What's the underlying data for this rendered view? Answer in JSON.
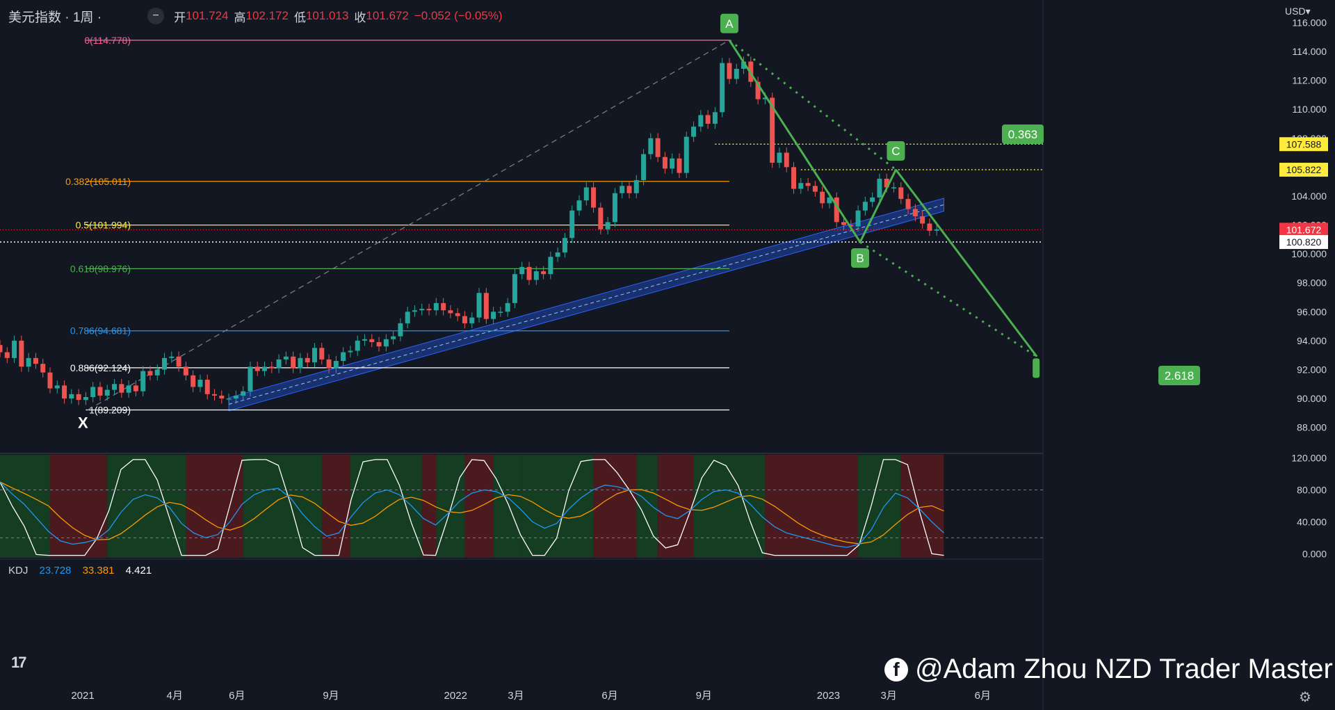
{
  "header": {
    "symbol": "美元指数 · 1周 ·",
    "open_label": "开",
    "open": "101.724",
    "high_label": "高",
    "high": "102.172",
    "low_label": "低",
    "low": "101.013",
    "close_label": "收",
    "close": "101.672",
    "change": "−0.052 (−0.05%)"
  },
  "currency": "USD",
  "kdj": {
    "name": "KDJ",
    "k": "23.728",
    "d": "33.381",
    "j": "4.421"
  },
  "watermark": "@Adam Zhou NZD Trader Master",
  "colors": {
    "bg": "#131722",
    "up": "#26a69a",
    "down": "#ef5350",
    "pattern": "#4caf50",
    "channel": "#2962ff"
  },
  "chart_data": {
    "type": "candlestick",
    "y_ticks": [
      "116.000",
      "114.000",
      "112.000",
      "110.000",
      "108.000",
      "106.000",
      "104.000",
      "102.000",
      "100.000",
      "98.000",
      "96.000",
      "94.000",
      "92.000",
      "90.000",
      "88.000"
    ],
    "ylim": [
      86.3,
      116.5
    ],
    "x_ticks": [
      "2021",
      "4月",
      "6月",
      "9月",
      "2022",
      "3月",
      "6月",
      "9月",
      "2023",
      "3月",
      "6月"
    ],
    "x_tick_dates": [
      "2021-01-01",
      "2021-04-01",
      "2021-06-01",
      "2021-09-01",
      "2022-01-01",
      "2022-03-01",
      "2022-06-01",
      "2022-09-01",
      "2023-01-01",
      "2023-03-01",
      "2023-06-01"
    ],
    "xlim": [
      "2020-10-12",
      "2023-07-30"
    ],
    "fib_levels": [
      {
        "label": "0(114.778)",
        "value": 114.778,
        "color": "#f06292"
      },
      {
        "label": "0.382(105.011)",
        "value": 105.011,
        "color": "#ff9800"
      },
      {
        "label": "0.5(101.994)",
        "value": 101.994,
        "color": "#ffeb3b"
      },
      {
        "label": "0.618(98.976)",
        "value": 98.976,
        "color": "#4caf50"
      },
      {
        "label": "0.786(94.681)",
        "value": 94.681,
        "color": "#2196f3"
      },
      {
        "label": "0.886(92.124)",
        "value": 92.124,
        "color": "#ffffff"
      },
      {
        "label": "1(89.209)",
        "value": 89.209,
        "color": "#ffffff"
      }
    ],
    "price_tags": [
      {
        "label": "107.588",
        "value": 107.588,
        "color": "#ffeb3b"
      },
      {
        "label": "105.822",
        "value": 105.822,
        "color": "#ffeb3b"
      },
      {
        "label": "101.672",
        "value": 101.672,
        "color": "#f23645"
      },
      {
        "label": "100.820",
        "value": 100.82,
        "color": "#ffffff"
      }
    ],
    "pattern_points": [
      {
        "label": "X",
        "date": "2021-01-06",
        "value": 89.209
      },
      {
        "label": "A",
        "date": "2022-09-26",
        "value": 114.778
      },
      {
        "label": "B",
        "date": "2023-02-01",
        "value": 100.82
      },
      {
        "label": "C",
        "date": "2023-03-08",
        "value": 105.822
      }
    ],
    "ratios": [
      {
        "label": "0.363"
      },
      {
        "label": "2.618"
      }
    ],
    "candles": [
      {
        "date": "2020-10-12",
        "o": 93.7,
        "c": 93.2
      },
      {
        "date": "2020-10-19",
        "o": 93.2,
        "c": 92.8
      },
      {
        "date": "2020-10-26",
        "o": 92.8,
        "c": 94.0
      },
      {
        "date": "2020-11-02",
        "o": 94.0,
        "c": 92.2
      },
      {
        "date": "2020-11-09",
        "o": 92.2,
        "c": 92.8
      },
      {
        "date": "2020-11-16",
        "o": 92.8,
        "c": 92.4
      },
      {
        "date": "2020-11-23",
        "o": 92.4,
        "c": 91.8
      },
      {
        "date": "2020-11-30",
        "o": 91.8,
        "c": 90.7
      },
      {
        "date": "2020-12-07",
        "o": 90.7,
        "c": 90.9
      },
      {
        "date": "2020-12-14",
        "o": 90.9,
        "c": 90.0
      },
      {
        "date": "2020-12-21",
        "o": 90.0,
        "c": 90.3
      },
      {
        "date": "2020-12-28",
        "o": 90.3,
        "c": 89.9
      },
      {
        "date": "2021-01-04",
        "o": 89.9,
        "c": 90.1
      },
      {
        "date": "2021-01-11",
        "o": 90.1,
        "c": 90.8
      },
      {
        "date": "2021-01-18",
        "o": 90.8,
        "c": 90.2
      },
      {
        "date": "2021-01-25",
        "o": 90.2,
        "c": 90.6
      },
      {
        "date": "2021-02-01",
        "o": 90.6,
        "c": 91.0
      },
      {
        "date": "2021-02-08",
        "o": 91.0,
        "c": 90.4
      },
      {
        "date": "2021-02-15",
        "o": 90.4,
        "c": 90.9
      },
      {
        "date": "2021-02-22",
        "o": 90.9,
        "c": 90.5
      },
      {
        "date": "2021-03-01",
        "o": 90.5,
        "c": 91.9
      },
      {
        "date": "2021-03-08",
        "o": 91.9,
        "c": 91.6
      },
      {
        "date": "2021-03-15",
        "o": 91.6,
        "c": 92.0
      },
      {
        "date": "2021-03-22",
        "o": 92.0,
        "c": 92.8
      },
      {
        "date": "2021-03-29",
        "o": 92.8,
        "c": 92.9
      },
      {
        "date": "2021-04-05",
        "o": 92.9,
        "c": 92.2
      },
      {
        "date": "2021-04-12",
        "o": 92.2,
        "c": 91.6
      },
      {
        "date": "2021-04-19",
        "o": 91.6,
        "c": 90.8
      },
      {
        "date": "2021-04-26",
        "o": 90.8,
        "c": 91.3
      },
      {
        "date": "2021-05-03",
        "o": 91.3,
        "c": 90.3
      },
      {
        "date": "2021-05-10",
        "o": 90.3,
        "c": 90.2
      },
      {
        "date": "2021-05-17",
        "o": 90.2,
        "c": 90.0
      },
      {
        "date": "2021-05-24",
        "o": 90.0,
        "c": 90.0
      },
      {
        "date": "2021-05-31",
        "o": 90.0,
        "c": 90.2
      },
      {
        "date": "2021-06-07",
        "o": 90.2,
        "c": 90.5
      },
      {
        "date": "2021-06-14",
        "o": 90.5,
        "c": 92.2
      },
      {
        "date": "2021-06-21",
        "o": 92.2,
        "c": 91.9
      },
      {
        "date": "2021-06-28",
        "o": 91.9,
        "c": 92.2
      },
      {
        "date": "2021-07-05",
        "o": 92.2,
        "c": 92.1
      },
      {
        "date": "2021-07-12",
        "o": 92.1,
        "c": 92.7
      },
      {
        "date": "2021-07-19",
        "o": 92.7,
        "c": 92.9
      },
      {
        "date": "2021-07-26",
        "o": 92.9,
        "c": 92.1
      },
      {
        "date": "2021-08-02",
        "o": 92.1,
        "c": 92.8
      },
      {
        "date": "2021-08-09",
        "o": 92.8,
        "c": 92.5
      },
      {
        "date": "2021-08-16",
        "o": 92.5,
        "c": 93.5
      },
      {
        "date": "2021-08-23",
        "o": 93.5,
        "c": 92.7
      },
      {
        "date": "2021-08-30",
        "o": 92.7,
        "c": 92.1
      },
      {
        "date": "2021-09-06",
        "o": 92.1,
        "c": 92.6
      },
      {
        "date": "2021-09-13",
        "o": 92.6,
        "c": 93.2
      },
      {
        "date": "2021-09-20",
        "o": 93.2,
        "c": 93.3
      },
      {
        "date": "2021-09-27",
        "o": 93.3,
        "c": 94.0
      },
      {
        "date": "2021-10-04",
        "o": 94.0,
        "c": 94.1
      },
      {
        "date": "2021-10-11",
        "o": 94.1,
        "c": 93.9
      },
      {
        "date": "2021-10-18",
        "o": 93.9,
        "c": 93.6
      },
      {
        "date": "2021-10-25",
        "o": 93.6,
        "c": 94.1
      },
      {
        "date": "2021-11-01",
        "o": 94.1,
        "c": 94.3
      },
      {
        "date": "2021-11-08",
        "o": 94.3,
        "c": 95.2
      },
      {
        "date": "2021-11-15",
        "o": 95.2,
        "c": 96.0
      },
      {
        "date": "2021-11-22",
        "o": 96.0,
        "c": 96.1
      },
      {
        "date": "2021-11-29",
        "o": 96.1,
        "c": 96.2
      },
      {
        "date": "2021-12-06",
        "o": 96.2,
        "c": 96.1
      },
      {
        "date": "2021-12-13",
        "o": 96.1,
        "c": 96.6
      },
      {
        "date": "2021-12-20",
        "o": 96.6,
        "c": 96.1
      },
      {
        "date": "2021-12-27",
        "o": 96.1,
        "c": 95.9
      },
      {
        "date": "2022-01-03",
        "o": 95.9,
        "c": 95.7
      },
      {
        "date": "2022-01-10",
        "o": 95.7,
        "c": 95.2
      },
      {
        "date": "2022-01-17",
        "o": 95.2,
        "c": 95.6
      },
      {
        "date": "2022-01-24",
        "o": 95.6,
        "c": 97.3
      },
      {
        "date": "2022-01-31",
        "o": 97.3,
        "c": 95.5
      },
      {
        "date": "2022-02-07",
        "o": 95.5,
        "c": 96.0
      },
      {
        "date": "2022-02-14",
        "o": 96.0,
        "c": 96.0
      },
      {
        "date": "2022-02-21",
        "o": 96.0,
        "c": 96.6
      },
      {
        "date": "2022-02-28",
        "o": 96.6,
        "c": 98.6
      },
      {
        "date": "2022-03-07",
        "o": 98.6,
        "c": 99.1
      },
      {
        "date": "2022-03-14",
        "o": 99.1,
        "c": 98.2
      },
      {
        "date": "2022-03-21",
        "o": 98.2,
        "c": 98.8
      },
      {
        "date": "2022-03-28",
        "o": 98.8,
        "c": 98.6
      },
      {
        "date": "2022-04-04",
        "o": 98.6,
        "c": 99.8
      },
      {
        "date": "2022-04-11",
        "o": 99.8,
        "c": 100.1
      },
      {
        "date": "2022-04-18",
        "o": 100.1,
        "c": 101.1
      },
      {
        "date": "2022-04-25",
        "o": 101.1,
        "c": 103.0
      },
      {
        "date": "2022-05-02",
        "o": 103.0,
        "c": 103.7
      },
      {
        "date": "2022-05-09",
        "o": 103.7,
        "c": 104.6
      },
      {
        "date": "2022-05-16",
        "o": 104.6,
        "c": 103.2
      },
      {
        "date": "2022-05-23",
        "o": 103.2,
        "c": 101.7
      },
      {
        "date": "2022-05-30",
        "o": 101.7,
        "c": 102.2
      },
      {
        "date": "2022-06-06",
        "o": 102.2,
        "c": 104.2
      },
      {
        "date": "2022-06-13",
        "o": 104.2,
        "c": 104.7
      },
      {
        "date": "2022-06-20",
        "o": 104.7,
        "c": 104.2
      },
      {
        "date": "2022-06-27",
        "o": 104.2,
        "c": 105.1
      },
      {
        "date": "2022-07-04",
        "o": 105.1,
        "c": 106.9
      },
      {
        "date": "2022-07-11",
        "o": 106.9,
        "c": 108.0
      },
      {
        "date": "2022-07-18",
        "o": 108.0,
        "c": 106.7
      },
      {
        "date": "2022-07-25",
        "o": 106.7,
        "c": 105.9
      },
      {
        "date": "2022-08-01",
        "o": 105.9,
        "c": 106.6
      },
      {
        "date": "2022-08-08",
        "o": 106.6,
        "c": 105.6
      },
      {
        "date": "2022-08-15",
        "o": 105.6,
        "c": 108.1
      },
      {
        "date": "2022-08-22",
        "o": 108.1,
        "c": 108.8
      },
      {
        "date": "2022-08-29",
        "o": 108.8,
        "c": 109.6
      },
      {
        "date": "2022-09-05",
        "o": 109.6,
        "c": 109.0
      },
      {
        "date": "2022-09-12",
        "o": 109.0,
        "c": 109.8
      },
      {
        "date": "2022-09-19",
        "o": 109.8,
        "c": 113.2
      },
      {
        "date": "2022-09-26",
        "o": 113.2,
        "c": 112.1
      },
      {
        "date": "2022-10-03",
        "o": 112.1,
        "c": 112.8
      },
      {
        "date": "2022-10-10",
        "o": 112.8,
        "c": 113.3
      },
      {
        "date": "2022-10-17",
        "o": 113.3,
        "c": 111.9
      },
      {
        "date": "2022-10-24",
        "o": 111.9,
        "c": 110.7
      },
      {
        "date": "2022-10-31",
        "o": 110.7,
        "c": 110.8
      },
      {
        "date": "2022-11-07",
        "o": 110.8,
        "c": 106.3
      },
      {
        "date": "2022-11-14",
        "o": 106.3,
        "c": 107.0
      },
      {
        "date": "2022-11-21",
        "o": 107.0,
        "c": 106.0
      },
      {
        "date": "2022-11-28",
        "o": 106.0,
        "c": 104.5
      },
      {
        "date": "2022-12-05",
        "o": 104.5,
        "c": 104.9
      },
      {
        "date": "2022-12-12",
        "o": 104.9,
        "c": 104.7
      },
      {
        "date": "2022-12-19",
        "o": 104.7,
        "c": 104.3
      },
      {
        "date": "2022-12-26",
        "o": 104.3,
        "c": 103.5
      },
      {
        "date": "2023-01-02",
        "o": 103.5,
        "c": 103.9
      },
      {
        "date": "2023-01-09",
        "o": 103.9,
        "c": 102.2
      },
      {
        "date": "2023-01-16",
        "o": 102.2,
        "c": 102.0
      },
      {
        "date": "2023-01-23",
        "o": 102.0,
        "c": 101.9
      },
      {
        "date": "2023-01-30",
        "o": 101.9,
        "c": 103.0
      },
      {
        "date": "2023-02-06",
        "o": 103.0,
        "c": 103.6
      },
      {
        "date": "2023-02-13",
        "o": 103.6,
        "c": 103.9
      },
      {
        "date": "2023-02-20",
        "o": 103.9,
        "c": 105.2
      },
      {
        "date": "2023-02-27",
        "o": 105.2,
        "c": 104.6
      },
      {
        "date": "2023-03-06",
        "o": 104.6,
        "c": 104.6
      },
      {
        "date": "2023-03-13",
        "o": 104.6,
        "c": 103.8
      },
      {
        "date": "2023-03-20",
        "o": 103.8,
        "c": 103.1
      },
      {
        "date": "2023-03-27",
        "o": 103.1,
        "c": 102.6
      },
      {
        "date": "2023-04-03",
        "o": 102.6,
        "c": 102.1
      },
      {
        "date": "2023-04-10",
        "o": 102.1,
        "c": 101.6
      },
      {
        "date": "2023-04-17",
        "o": 101.6,
        "c": 101.7
      }
    ],
    "kdj_panel": {
      "y_ticks": [
        "120.000",
        "80.000",
        "40.000",
        "0.000"
      ],
      "ylim": [
        -5,
        124
      ]
    }
  }
}
